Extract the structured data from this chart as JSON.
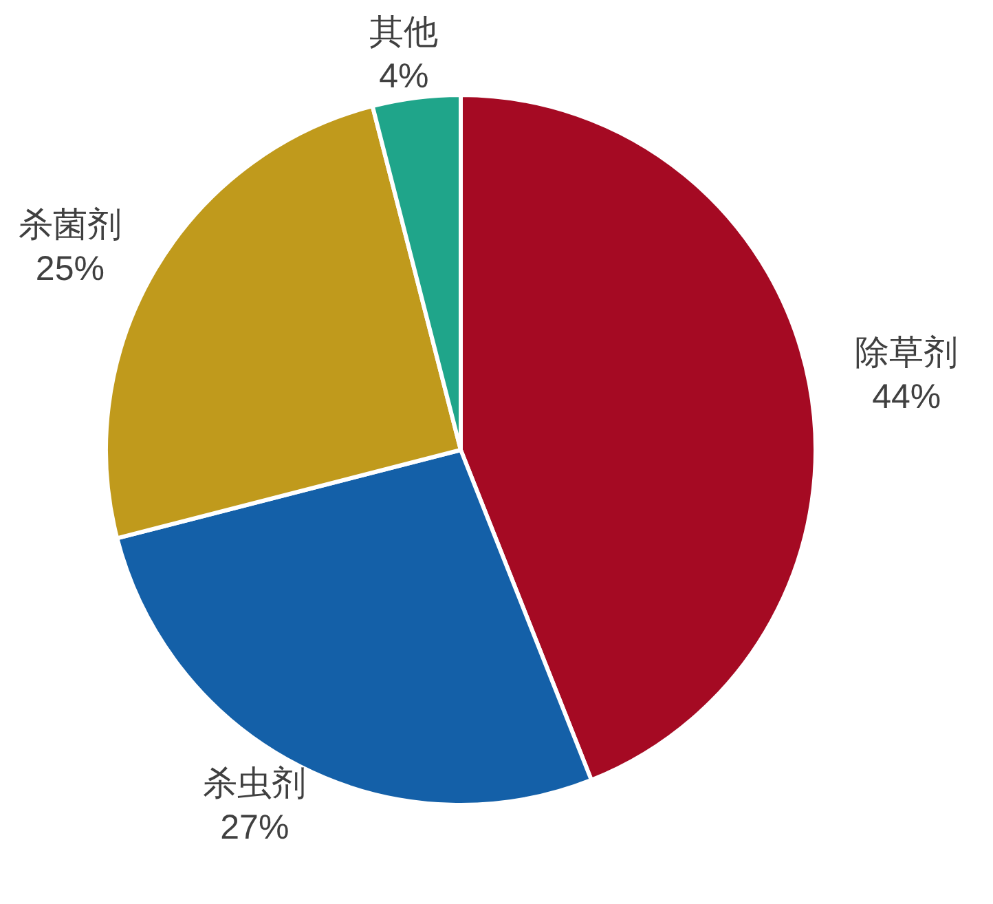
{
  "chart_data": {
    "type": "pie",
    "categories": [
      "除草剂",
      "杀虫剂",
      "杀菌剂",
      "其他"
    ],
    "values": [
      44,
      27,
      25,
      4
    ],
    "colors": [
      "#a50a23",
      "#1460a8",
      "#c09a1c",
      "#1fa58a"
    ],
    "value_labels": [
      "44%",
      "27%",
      "25%",
      "4%"
    ]
  }
}
